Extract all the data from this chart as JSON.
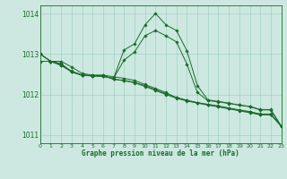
{
  "title": "Graphe pression niveau de la mer (hPa)",
  "background_color": "#cce8e0",
  "grid_color": "#99ccbb",
  "line_color": "#1a6b2a",
  "xlim": [
    0,
    23
  ],
  "ylim": [
    1010.8,
    1014.2
  ],
  "yticks": [
    1011,
    1012,
    1013,
    1014
  ],
  "xticks": [
    0,
    1,
    2,
    3,
    4,
    5,
    6,
    7,
    8,
    9,
    10,
    11,
    12,
    13,
    14,
    15,
    16,
    17,
    18,
    19,
    20,
    21,
    22,
    23
  ],
  "series": [
    [
      1013.0,
      1012.82,
      1012.82,
      1012.68,
      1012.52,
      1012.48,
      1012.48,
      1012.44,
      1012.4,
      1012.35,
      1012.25,
      1012.15,
      1012.05,
      1011.92,
      1011.85,
      1011.8,
      1011.75,
      1011.7,
      1011.65,
      1011.6,
      1011.55,
      1011.5,
      1011.5,
      1011.22
    ],
    [
      1012.82,
      1012.82,
      1012.72,
      1012.58,
      1012.48,
      1012.47,
      1012.47,
      1012.38,
      1012.35,
      1012.3,
      1012.22,
      1012.12,
      1012.02,
      1011.93,
      1011.86,
      1011.8,
      1011.76,
      1011.72,
      1011.67,
      1011.62,
      1011.58,
      1011.52,
      1011.52,
      1011.22
    ],
    [
      1012.82,
      1012.82,
      1012.72,
      1012.56,
      1012.47,
      1012.46,
      1012.46,
      1012.38,
      1012.34,
      1012.29,
      1012.2,
      1012.1,
      1012.0,
      1011.91,
      1011.84,
      1011.79,
      1011.74,
      1011.7,
      1011.65,
      1011.61,
      1011.57,
      1011.51,
      1011.51,
      1011.22
    ],
    [
      1013.0,
      1012.82,
      1012.76,
      1012.56,
      1012.48,
      1012.46,
      1012.45,
      1012.4,
      1012.85,
      1013.05,
      1013.45,
      1013.58,
      1013.45,
      1013.3,
      1012.75,
      1012.05,
      1011.85,
      1011.82,
      1011.78,
      1011.74,
      1011.7,
      1011.62,
      1011.62,
      1011.22
    ],
    [
      1013.0,
      1012.82,
      1012.76,
      1012.56,
      1012.48,
      1012.46,
      1012.45,
      1012.4,
      1013.1,
      1013.25,
      1013.72,
      1014.0,
      1013.72,
      1013.58,
      1013.08,
      1012.22,
      1011.87,
      1011.83,
      1011.79,
      1011.74,
      1011.71,
      1011.63,
      1011.63,
      1011.22
    ]
  ]
}
